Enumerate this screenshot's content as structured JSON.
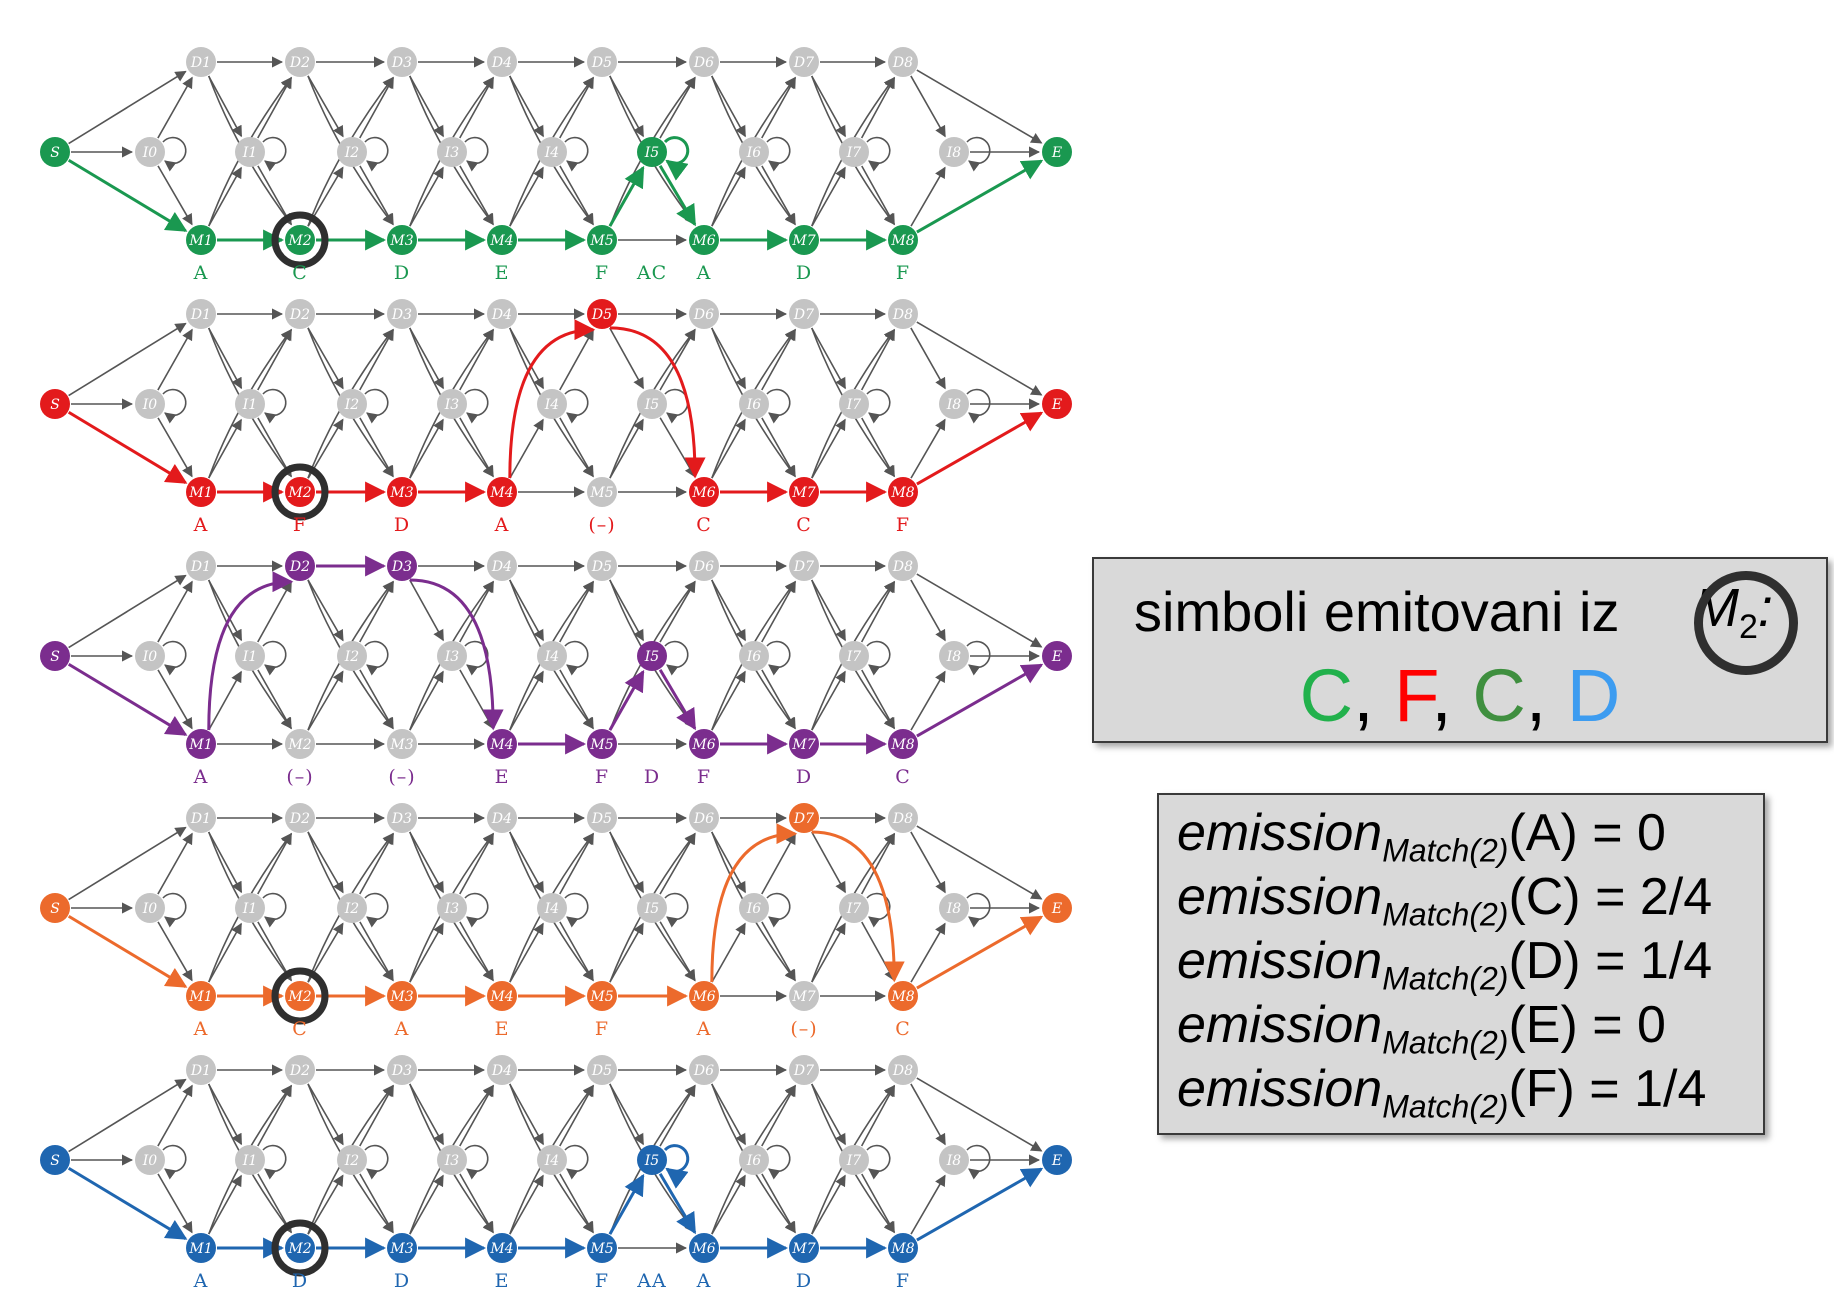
{
  "rows": [
    {
      "color": "#1a9850",
      "symbols": [
        "A",
        "C",
        "D",
        "E",
        "F",
        "AC",
        "A",
        "D",
        "F"
      ],
      "path": [
        "S",
        "M1",
        "M2",
        "M3",
        "M4",
        "M5",
        "I5",
        "M6",
        "M7",
        "M8",
        "E"
      ],
      "selfloop_I5": true
    },
    {
      "color": "#e31a1c",
      "symbols": [
        "A",
        "F",
        "D",
        "A",
        "(–)",
        "C",
        "C",
        "F"
      ],
      "path": [
        "S",
        "M1",
        "M2",
        "M3",
        "M4",
        "D5",
        "M6",
        "M7",
        "M8",
        "E"
      ],
      "selfloop_I5": false
    },
    {
      "color": "#7b2d8e",
      "symbols": [
        "A",
        "(–)",
        "(–)",
        "E",
        "F",
        "D",
        "F",
        "D",
        "C"
      ],
      "path": [
        "S",
        "M1",
        "D2",
        "D3",
        "M4",
        "M5",
        "I5",
        "M6",
        "M7",
        "M8",
        "E"
      ],
      "selfloop_I5": false
    },
    {
      "color": "#ec6a2c",
      "symbols": [
        "A",
        "C",
        "A",
        "E",
        "F",
        "A",
        "(–)",
        "C"
      ],
      "path": [
        "S",
        "M1",
        "M2",
        "M3",
        "M4",
        "M5",
        "M6",
        "D7",
        "M8",
        "E"
      ],
      "selfloop_I5": false
    },
    {
      "color": "#1f66b0",
      "symbols": [
        "A",
        "D",
        "D",
        "E",
        "F",
        "AA",
        "A",
        "D",
        "F"
      ],
      "path": [
        "S",
        "M1",
        "M2",
        "M3",
        "M4",
        "M5",
        "I5",
        "M6",
        "M7",
        "M8",
        "E"
      ],
      "selfloop_I5": true
    }
  ],
  "node_labels": {
    "S": "S",
    "E": "E",
    "D": [
      "D1",
      "D2",
      "D3",
      "D4",
      "D5",
      "D6",
      "D7",
      "D8"
    ],
    "I": [
      "I0",
      "I1",
      "I2",
      "I3",
      "I4",
      "I5",
      "I6",
      "I7",
      "I8"
    ],
    "M": [
      "M1",
      "M2",
      "M3",
      "M4",
      "M5",
      "M6",
      "M7",
      "M8"
    ]
  },
  "symbols_box": {
    "title": "simboli emitovani iz",
    "state_letter": "M",
    "state_index": "2",
    "colon": ":",
    "list": [
      {
        "text": "C",
        "color": "#22b14c"
      },
      {
        "text": "F",
        "color": "#ff0000"
      },
      {
        "text": "C",
        "color": "#3f8f3f"
      },
      {
        "text": "D",
        "color": "#3d9cf0"
      }
    ]
  },
  "emission_box": {
    "function": "emission",
    "subscript": "Match(2)",
    "rows": [
      {
        "symbol": "(A)",
        "value": "= 0"
      },
      {
        "symbol": "(C)",
        "value": "= 2/4"
      },
      {
        "symbol": "(D)",
        "value": "= 1/4"
      },
      {
        "symbol": "(E)",
        "value": "= 0"
      },
      {
        "symbol": "(F)",
        "value": "= 1/4"
      }
    ]
  },
  "colors": {
    "grey_node": "#c4c4c4",
    "grey_edge": "#555555",
    "ring": "#2f2f2f"
  }
}
